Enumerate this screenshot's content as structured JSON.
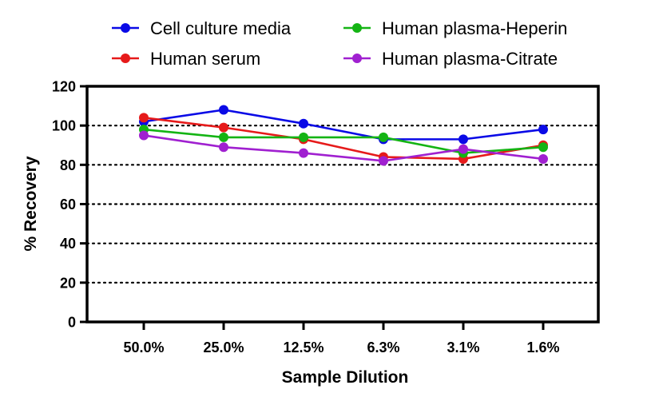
{
  "chart_data": {
    "type": "line",
    "title": "",
    "xlabel": "Sample Dilution",
    "ylabel": "% Recovery",
    "categories": [
      "50.0%",
      "25.0%",
      "12.5%",
      "6.3%",
      "3.1%",
      "1.6%"
    ],
    "ylim": [
      0,
      120
    ],
    "yticks": [
      0,
      20,
      40,
      60,
      80,
      100,
      120
    ],
    "grid": "horizontal dotted lines at 20, 40, 60, 80, 100",
    "legend_position": "top",
    "series": [
      {
        "name": "Cell culture media",
        "color": "#0a0ae6",
        "values": [
          102,
          108,
          101,
          93,
          93,
          98
        ]
      },
      {
        "name": "Human serum",
        "color": "#e61a1a",
        "values": [
          104,
          99,
          93,
          84,
          83,
          90
        ]
      },
      {
        "name": "Human plasma-Heperin",
        "color": "#14b414",
        "values": [
          98,
          94,
          94,
          94,
          86,
          89
        ]
      },
      {
        "name": "Human plasma-Citrate",
        "color": "#a020d0",
        "values": [
          95,
          89,
          86,
          82,
          88,
          83
        ]
      }
    ]
  }
}
